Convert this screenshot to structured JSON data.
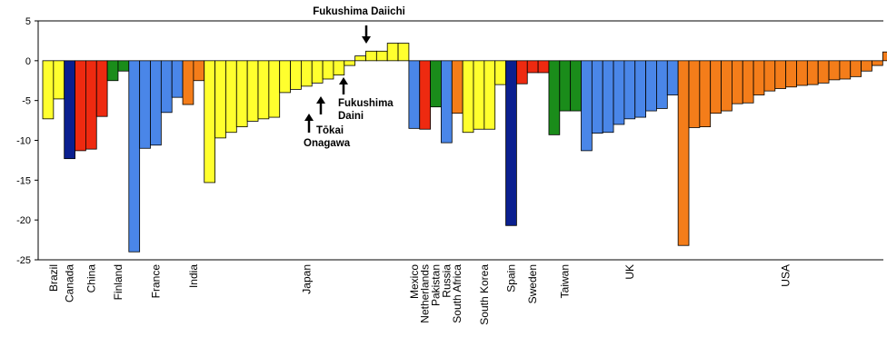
{
  "chart_data": {
    "type": "bar",
    "title": "",
    "xlabel": "",
    "ylabel": "",
    "ylim": [
      -25,
      5
    ],
    "yticks": [
      5,
      0,
      -5,
      -10,
      -15,
      -20,
      -25
    ],
    "grid": false,
    "legend": "none",
    "colors": {
      "yellow": "#ffff2e",
      "navy": "#0a1f8f",
      "red": "#ee2a10",
      "green": "#1a8c1a",
      "blue": "#4a86e8",
      "orange": "#f47d1a"
    },
    "bars": [
      {
        "country": "Brazil",
        "color": "yellow",
        "value": -7.3
      },
      {
        "country": "Brazil",
        "color": "yellow",
        "value": -4.8
      },
      {
        "country": "Canada",
        "color": "navy",
        "value": -12.3
      },
      {
        "country": "China",
        "color": "red",
        "value": -11.3
      },
      {
        "country": "China",
        "color": "red",
        "value": -11.1
      },
      {
        "country": "China",
        "color": "red",
        "value": -7.0
      },
      {
        "country": "Finland",
        "color": "green",
        "value": -2.5
      },
      {
        "country": "Finland",
        "color": "green",
        "value": -1.3
      },
      {
        "country": "France",
        "color": "blue",
        "value": -24.0
      },
      {
        "country": "France",
        "color": "blue",
        "value": -11.0
      },
      {
        "country": "France",
        "color": "blue",
        "value": -10.6
      },
      {
        "country": "France",
        "color": "blue",
        "value": -6.5
      },
      {
        "country": "France",
        "color": "blue",
        "value": -4.6
      },
      {
        "country": "India",
        "color": "orange",
        "value": -5.5
      },
      {
        "country": "India",
        "color": "orange",
        "value": -2.5
      },
      {
        "country": "Japan",
        "color": "yellow",
        "value": -15.3
      },
      {
        "country": "Japan",
        "color": "yellow",
        "value": -9.7
      },
      {
        "country": "Japan",
        "color": "yellow",
        "value": -9.0
      },
      {
        "country": "Japan",
        "color": "yellow",
        "value": -8.3
      },
      {
        "country": "Japan",
        "color": "yellow",
        "value": -7.6
      },
      {
        "country": "Japan",
        "color": "yellow",
        "value": -7.3
      },
      {
        "country": "Japan",
        "color": "yellow",
        "value": -7.1
      },
      {
        "country": "Japan",
        "color": "yellow",
        "value": -4.0
      },
      {
        "country": "Japan",
        "color": "yellow",
        "value": -3.6
      },
      {
        "country": "Japan",
        "color": "yellow",
        "value": -3.2
      },
      {
        "country": "Japan",
        "color": "yellow",
        "value": -2.8
      },
      {
        "country": "Japan",
        "color": "yellow",
        "value": -2.3
      },
      {
        "country": "Japan",
        "color": "yellow",
        "value": -1.8
      },
      {
        "country": "Japan",
        "color": "yellow",
        "value": -0.6
      },
      {
        "country": "Japan",
        "color": "yellow",
        "value": 0.6
      },
      {
        "country": "Japan",
        "color": "yellow",
        "value": 1.2
      },
      {
        "country": "Japan",
        "color": "yellow",
        "value": 1.2
      },
      {
        "country": "Japan",
        "color": "yellow",
        "value": 2.2
      },
      {
        "country": "Japan",
        "color": "yellow",
        "value": 2.2
      },
      {
        "country": "Mexico",
        "color": "blue",
        "value": -8.5
      },
      {
        "country": "Netherlands",
        "color": "red",
        "value": -8.6
      },
      {
        "country": "Pakistan",
        "color": "green",
        "value": -5.8
      },
      {
        "country": "Russia",
        "color": "blue",
        "value": -10.3
      },
      {
        "country": "South Africa",
        "color": "orange",
        "value": -6.6
      },
      {
        "country": "South Korea",
        "color": "yellow",
        "value": -9.0
      },
      {
        "country": "South Korea",
        "color": "yellow",
        "value": -8.6
      },
      {
        "country": "South Korea",
        "color": "yellow",
        "value": -8.6
      },
      {
        "country": "South Korea",
        "color": "yellow",
        "value": -3.0
      },
      {
        "country": "Spain",
        "color": "navy",
        "value": -20.7
      },
      {
        "country": "Sweden",
        "color": "red",
        "value": -2.9
      },
      {
        "country": "Sweden",
        "color": "red",
        "value": -1.5
      },
      {
        "country": "Sweden",
        "color": "red",
        "value": -1.5
      },
      {
        "country": "Taiwan",
        "color": "green",
        "value": -9.3
      },
      {
        "country": "Taiwan",
        "color": "green",
        "value": -6.3
      },
      {
        "country": "Taiwan",
        "color": "green",
        "value": -6.3
      },
      {
        "country": "UK",
        "color": "blue",
        "value": -11.3
      },
      {
        "country": "UK",
        "color": "blue",
        "value": -9.1
      },
      {
        "country": "UK",
        "color": "blue",
        "value": -9.0
      },
      {
        "country": "UK",
        "color": "blue",
        "value": -8.0
      },
      {
        "country": "UK",
        "color": "blue",
        "value": -7.3
      },
      {
        "country": "UK",
        "color": "blue",
        "value": -7.1
      },
      {
        "country": "UK",
        "color": "blue",
        "value": -6.3
      },
      {
        "country": "UK",
        "color": "blue",
        "value": -6.0
      },
      {
        "country": "UK",
        "color": "blue",
        "value": -4.3
      },
      {
        "country": "USA",
        "color": "orange",
        "value": -23.2
      },
      {
        "country": "USA",
        "color": "orange",
        "value": -8.4
      },
      {
        "country": "USA",
        "color": "orange",
        "value": -8.3
      },
      {
        "country": "USA",
        "color": "orange",
        "value": -6.6
      },
      {
        "country": "USA",
        "color": "orange",
        "value": -6.3
      },
      {
        "country": "USA",
        "color": "orange",
        "value": -5.4
      },
      {
        "country": "USA",
        "color": "orange",
        "value": -5.3
      },
      {
        "country": "USA",
        "color": "orange",
        "value": -4.3
      },
      {
        "country": "USA",
        "color": "orange",
        "value": -3.8
      },
      {
        "country": "USA",
        "color": "orange",
        "value": -3.5
      },
      {
        "country": "USA",
        "color": "orange",
        "value": -3.3
      },
      {
        "country": "USA",
        "color": "orange",
        "value": -3.1
      },
      {
        "country": "USA",
        "color": "orange",
        "value": -3.0
      },
      {
        "country": "USA",
        "color": "orange",
        "value": -2.8
      },
      {
        "country": "USA",
        "color": "orange",
        "value": -2.4
      },
      {
        "country": "USA",
        "color": "orange",
        "value": -2.3
      },
      {
        "country": "USA",
        "color": "orange",
        "value": -2.0
      },
      {
        "country": "USA",
        "color": "orange",
        "value": -1.3
      },
      {
        "country": "USA",
        "color": "orange",
        "value": -0.6
      },
      {
        "country": "USA",
        "color": "orange",
        "value": 1.1
      }
    ],
    "categories": [
      "Brazil",
      "Canada",
      "China",
      "Finland",
      "France",
      "India",
      "Japan",
      "Mexico",
      "Netherlands",
      "Pakistan",
      "Russia",
      "South Africa",
      "South Korea",
      "Spain",
      "Sweden",
      "Taiwan",
      "UK",
      "USA"
    ],
    "annotations": [
      {
        "text": "Fukushima Daiichi",
        "bar_index": 30,
        "arrow": "down"
      },
      {
        "text": "Fukushima Daini",
        "bar_index": 28,
        "arrow": "up"
      },
      {
        "text": "Tōkai",
        "bar_index": 26,
        "arrow": "up"
      },
      {
        "text": "Onagawa",
        "bar_index": 25,
        "arrow": "up"
      }
    ]
  }
}
